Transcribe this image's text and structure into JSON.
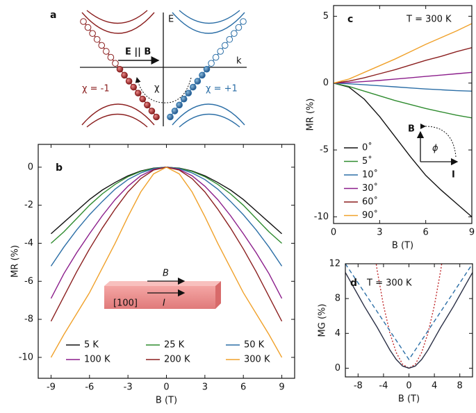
{
  "schematic": {
    "label": "a",
    "energy_axis": "E",
    "momentum_axis": "k",
    "field_label": "E || B",
    "left_chirality": "χ = -1",
    "right_chirality": "χ = +1",
    "pump_label": "χ"
  },
  "chart_data": [
    {
      "type": "line",
      "panel_label": "b",
      "xlabel": "B (T)",
      "ylabel": "MR (%)",
      "x": [
        -9,
        -8,
        -7,
        -6,
        -5,
        -4,
        -3,
        -2,
        -1,
        0,
        1,
        2,
        3,
        4,
        5,
        6,
        7,
        8,
        9
      ],
      "xlim": [
        -10,
        10
      ],
      "xticks": [
        -9,
        -6,
        -3,
        0,
        3,
        6,
        9
      ],
      "ylim": [
        -11.1,
        1.2
      ],
      "yticks": [
        0,
        -2,
        -4,
        -6,
        -8,
        -10
      ],
      "series": [
        {
          "name": "5 K",
          "color": "#111111",
          "values": [
            -3.5,
            -2.9,
            -2.3,
            -1.7,
            -1.2,
            -0.8,
            -0.45,
            -0.2,
            -0.05,
            0,
            -0.05,
            -0.2,
            -0.45,
            -0.8,
            -1.2,
            -1.7,
            -2.3,
            -2.9,
            -3.5
          ]
        },
        {
          "name": "25 K",
          "color": "#2e8b2e",
          "values": [
            -4.0,
            -3.4,
            -2.7,
            -2.0,
            -1.4,
            -0.9,
            -0.5,
            -0.22,
            -0.06,
            0,
            -0.06,
            -0.22,
            -0.5,
            -0.9,
            -1.4,
            -2.0,
            -2.7,
            -3.4,
            -4.0
          ]
        },
        {
          "name": "50 K",
          "color": "#2b6ea6",
          "values": [
            -5.2,
            -4.2,
            -3.3,
            -2.5,
            -1.8,
            -1.15,
            -0.65,
            -0.3,
            -0.08,
            0,
            -0.08,
            -0.3,
            -0.65,
            -1.15,
            -1.8,
            -2.5,
            -3.3,
            -4.2,
            -5.2
          ]
        },
        {
          "name": "100 K",
          "color": "#8b1d8b",
          "values": [
            -6.9,
            -5.6,
            -4.5,
            -3.5,
            -2.55,
            -1.7,
            -1.0,
            -0.45,
            -0.12,
            0,
            -0.12,
            -0.45,
            -1.0,
            -1.7,
            -2.55,
            -3.5,
            -4.5,
            -5.6,
            -6.9
          ]
        },
        {
          "name": "200 K",
          "color": "#8b1f1f",
          "values": [
            -8.1,
            -6.8,
            -5.5,
            -4.3,
            -3.2,
            -2.2,
            -1.3,
            -0.6,
            -0.15,
            0,
            -0.15,
            -0.6,
            -1.3,
            -2.2,
            -3.2,
            -4.3,
            -5.5,
            -6.8,
            -8.1
          ]
        },
        {
          "name": "300 K",
          "color": "#f0a12a",
          "values": [
            -10.0,
            -8.8,
            -7.7,
            -6.6,
            -5.3,
            -4.0,
            -2.6,
            -1.3,
            -0.35,
            0,
            -0.35,
            -1.3,
            -2.6,
            -4.0,
            -5.3,
            -6.6,
            -7.7,
            -8.8,
            -10.0
          ]
        }
      ],
      "inset": {
        "field": "B",
        "current": "I",
        "direction": "[100]"
      }
    },
    {
      "type": "line",
      "panel_label": "c",
      "xlabel": "B (T)",
      "ylabel": "MR (%)",
      "annotation": "T = 300 K",
      "x": [
        0,
        1,
        2,
        3,
        4,
        5,
        6,
        7,
        8,
        9
      ],
      "xlim": [
        0,
        9
      ],
      "xticks": [
        0,
        3,
        6,
        9
      ],
      "ylim": [
        -10.5,
        5.8
      ],
      "yticks": [
        5,
        0,
        -5,
        -10
      ],
      "series": [
        {
          "name": "0˚",
          "color": "#111111",
          "values": [
            0,
            -0.3,
            -1.2,
            -2.5,
            -4.0,
            -5.5,
            -6.9,
            -8.0,
            -9.0,
            -10.0
          ]
        },
        {
          "name": "5˚",
          "color": "#2e8b2e",
          "values": [
            0,
            -0.25,
            -0.6,
            -0.95,
            -1.3,
            -1.6,
            -1.9,
            -2.15,
            -2.4,
            -2.6
          ]
        },
        {
          "name": "10˚",
          "color": "#2b6ea6",
          "values": [
            0,
            -0.05,
            -0.12,
            -0.2,
            -0.28,
            -0.36,
            -0.44,
            -0.5,
            -0.56,
            -0.6
          ]
        },
        {
          "name": "30˚",
          "color": "#8b1d8b",
          "values": [
            0,
            0.05,
            0.12,
            0.2,
            0.3,
            0.4,
            0.5,
            0.6,
            0.7,
            0.8
          ]
        },
        {
          "name": "60˚",
          "color": "#8b1f1f",
          "values": [
            0,
            0.15,
            0.4,
            0.7,
            1.0,
            1.35,
            1.7,
            2.0,
            2.35,
            2.65
          ]
        },
        {
          "name": "90˚",
          "color": "#f0a12a",
          "values": [
            0,
            0.3,
            0.8,
            1.3,
            1.8,
            2.35,
            2.9,
            3.4,
            3.9,
            4.45
          ]
        }
      ],
      "inset": {
        "field": "B",
        "current": "I",
        "angle": "ϕ"
      }
    },
    {
      "type": "line",
      "panel_label": "d",
      "xlabel": "B (T)",
      "ylabel": "MG (%)",
      "annotation": "T = 300 K",
      "x": [
        -10,
        -9,
        -8,
        -7,
        -6,
        -5,
        -4,
        -3,
        -2,
        -1,
        0,
        1,
        2,
        3,
        4,
        5,
        6,
        7,
        8,
        9,
        10
      ],
      "xlim": [
        -10,
        10
      ],
      "xticks": [
        -8,
        -4,
        0,
        4,
        8
      ],
      "ylim": [
        -1,
        12
      ],
      "yticks": [
        0,
        4,
        8,
        12
      ],
      "series": [
        {
          "color": "#c0282a",
          "dash": "dotted",
          "values": [
            null,
            null,
            null,
            null,
            16.2,
            11.25,
            7.2,
            4.05,
            1.8,
            0.45,
            0,
            0.45,
            1.8,
            4.05,
            7.2,
            11.25,
            16.2,
            null,
            null,
            null,
            null
          ]
        },
        {
          "color": "#2b6ea6",
          "dash": "dashed",
          "values": [
            12.0,
            10.9,
            9.8,
            8.7,
            7.6,
            6.5,
            5.4,
            4.3,
            3.2,
            2.1,
            1.0,
            2.1,
            3.2,
            4.3,
            5.4,
            6.5,
            7.6,
            8.7,
            9.8,
            10.9,
            12.0
          ]
        },
        {
          "color": "#2a2f45",
          "dash": "solid",
          "values": [
            11.0,
            9.7,
            8.4,
            7.1,
            5.9,
            4.7,
            3.4,
            2.1,
            1.0,
            0.25,
            0,
            0.25,
            1.0,
            2.1,
            3.4,
            4.7,
            5.9,
            7.1,
            8.4,
            9.7,
            11.0
          ]
        }
      ]
    }
  ]
}
